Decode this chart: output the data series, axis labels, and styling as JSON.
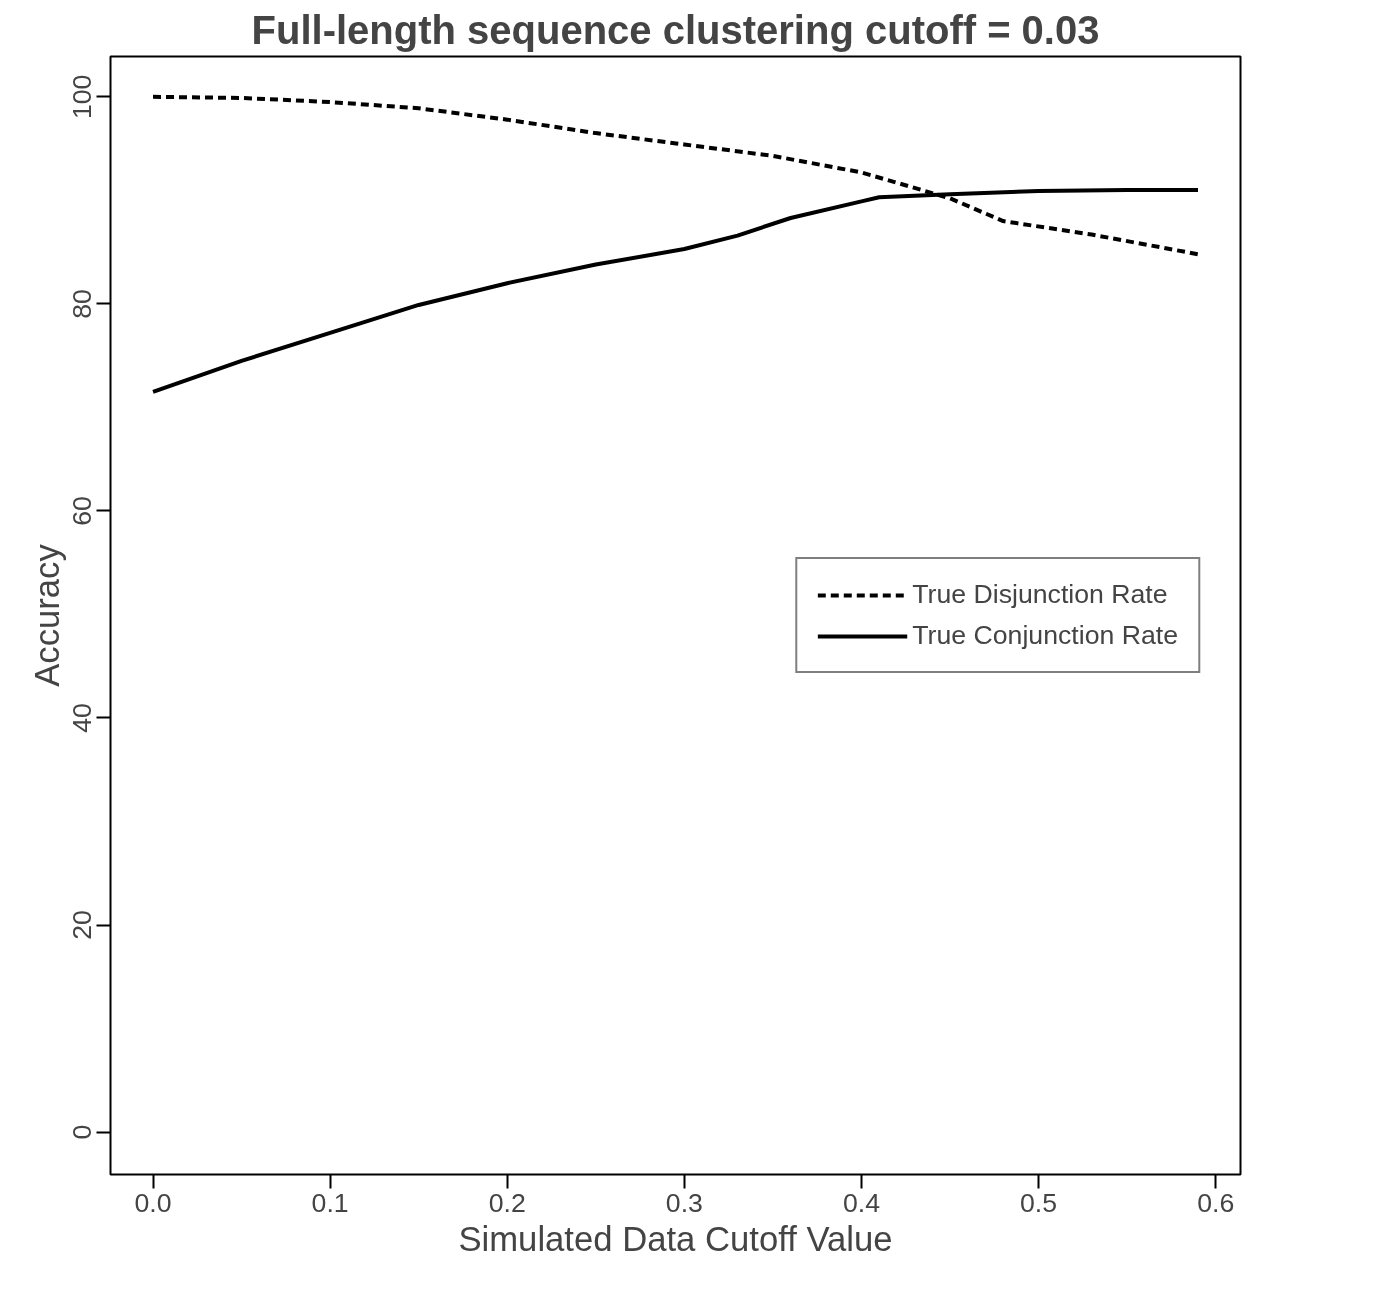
{
  "chart_data": {
    "type": "line",
    "title": "Full-length sequence clustering cutoff = 0.03",
    "xlabel": "Simulated Data Cutoff Value",
    "ylabel": "Accuracy",
    "xlim": [
      -0.024,
      0.614
    ],
    "ylim": [
      -4.1,
      103.9
    ],
    "xticks": [
      {
        "value": 0,
        "label": "0.0"
      },
      0.1,
      0.2,
      0.3,
      0.4,
      0.5,
      0.6
    ],
    "yticks": [
      0,
      20,
      40,
      60,
      80,
      100
    ],
    "grid": false,
    "legend": "right",
    "marker": "none",
    "series": [
      {
        "name": "True Disjunction Rate",
        "color": "#000000",
        "line_style": "dashed",
        "x": [
          0,
          0.05,
          0.1,
          0.15,
          0.2,
          0.25,
          0.3,
          0.35,
          0.4,
          0.45,
          0.48,
          0.53,
          0.59
        ],
        "values": [
          100,
          99.9,
          99.5,
          98.9,
          97.8,
          96.5,
          95.4,
          94.3,
          92.7,
          90.2,
          88,
          86.7,
          84.8
        ]
      },
      {
        "name": "True Conjunction Rate",
        "color": "#000000",
        "line_style": "solid",
        "x": [
          0,
          0.05,
          0.1,
          0.15,
          0.2,
          0.25,
          0.3,
          0.33,
          0.36,
          0.4,
          0.41,
          0.45,
          0.5,
          0.55,
          0.59
        ],
        "values": [
          71.5,
          74.5,
          77.2,
          79.9,
          82.0,
          83.8,
          85.3,
          86.6,
          88.3,
          89.9,
          90.3,
          90.6,
          90.9,
          91.0,
          91.0
        ]
      }
    ]
  }
}
